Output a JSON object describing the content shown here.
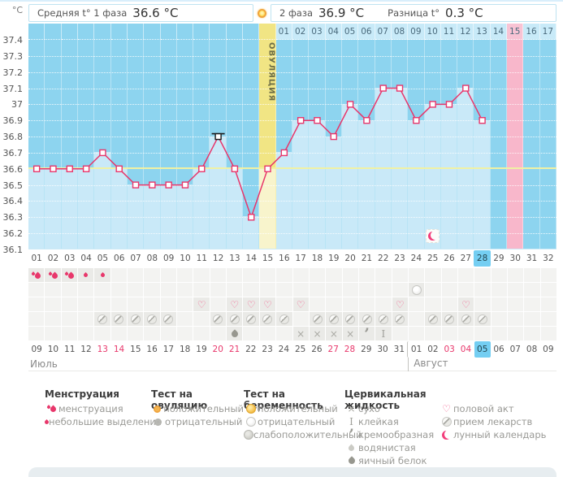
{
  "header": {
    "unit_label": "°C",
    "phase1_label": "Средняя t° 1 фаза",
    "phase1_value": "36.6 °C",
    "phase2_label": "2 фаза",
    "phase2_value": "36.9 °C",
    "diff_label": "Разница t°",
    "diff_value": "0.3 °C",
    "ovulation_label": "ОВУЛЯЦИЯ"
  },
  "chart_data": {
    "type": "line",
    "ylabel": "°C",
    "ylim": [
      36.1,
      37.4
    ],
    "ytick_labels": [
      "37.4",
      "37.3",
      "37.2",
      "37.1",
      "37",
      "36.9",
      "36.8",
      "36.7",
      "36.6",
      "36.5",
      "36.4",
      "36.3",
      "36.2",
      "36.1"
    ],
    "grid": true,
    "cycle_day_labels": [
      "01",
      "02",
      "03",
      "04",
      "05",
      "06",
      "07",
      "08",
      "09",
      "10",
      "11",
      "12",
      "13",
      "14",
      "15",
      "16",
      "17",
      "18",
      "19",
      "20",
      "21",
      "22",
      "23",
      "24",
      "25",
      "26",
      "27",
      "28",
      "29",
      "30",
      "31",
      "32"
    ],
    "temperatures_c": [
      36.6,
      36.6,
      36.6,
      36.6,
      36.7,
      36.6,
      36.5,
      36.5,
      36.5,
      36.5,
      36.6,
      36.8,
      36.6,
      36.3,
      36.6,
      36.7,
      36.9,
      36.9,
      36.8,
      37.0,
      36.9,
      37.1,
      37.1,
      36.9,
      37.0,
      37.0,
      37.1,
      36.9,
      null,
      null,
      null,
      null
    ],
    "coverline_c": 36.6,
    "ovulation_day": 15,
    "excluded_point_day": 12,
    "pink_band_day": 30,
    "selected_day": "28",
    "lunar_marker_day": 25,
    "dpo_labels": [
      "01",
      "02",
      "03",
      "04",
      "05",
      "06",
      "07",
      "08",
      "09",
      "10",
      "11",
      "12",
      "13",
      "14",
      "15",
      "16",
      "17"
    ],
    "dpo_highlighted": "15",
    "line_color": "#e8366b",
    "area_color": "#c9e9f8",
    "bg_color": "#8dd4ef",
    "ovulation_band_color": "#f1e584",
    "pink_band_color": "#f8b7cb"
  },
  "symptom_rows": [
    {
      "name": "menstruation",
      "cells": {
        "1": "menses",
        "2": "menses",
        "3": "menses",
        "4": "spotting",
        "5": "spotting"
      }
    },
    {
      "name": "pregnancy-test",
      "cells": {
        "24": "preg-negative"
      }
    },
    {
      "name": "intercourse",
      "cells": {
        "11": "heart",
        "13": "heart",
        "14": "heart",
        "15": "heart",
        "17": "heart",
        "23": "heart",
        "27": "heart"
      }
    },
    {
      "name": "medication",
      "cells": {
        "5": "pill",
        "6": "pill",
        "7": "pill",
        "8": "pill",
        "9": "pill",
        "12": "pill",
        "13": "pill",
        "14": "pill",
        "15": "pill",
        "16": "pill",
        "18": "pill",
        "19": "pill",
        "20": "pill",
        "21": "pill",
        "22": "pill",
        "23": "pill",
        "25": "pill",
        "26": "pill",
        "27": "pill",
        "28": "pill"
      }
    },
    {
      "name": "cervical-fluid",
      "cells": {
        "13": "eggwhite",
        "17": "dry",
        "18": "dry",
        "19": "dry",
        "20": "dry",
        "21": "creamy",
        "22": "sticky"
      }
    }
  ],
  "calendar": {
    "july_label": "Июль",
    "august_label": "Август",
    "dates": [
      {
        "label": "09"
      },
      {
        "label": "10"
      },
      {
        "label": "11"
      },
      {
        "label": "12"
      },
      {
        "label": "13",
        "red": true
      },
      {
        "label": "14",
        "red": true
      },
      {
        "label": "15"
      },
      {
        "label": "16"
      },
      {
        "label": "17"
      },
      {
        "label": "18"
      },
      {
        "label": "19"
      },
      {
        "label": "20",
        "red": true
      },
      {
        "label": "21",
        "red": true
      },
      {
        "label": "22"
      },
      {
        "label": "23"
      },
      {
        "label": "24"
      },
      {
        "label": "25"
      },
      {
        "label": "26"
      },
      {
        "label": "27",
        "red": true
      },
      {
        "label": "28",
        "red": true
      },
      {
        "label": "29"
      },
      {
        "label": "30"
      },
      {
        "label": "31"
      },
      {
        "label": "01",
        "month_start": true
      },
      {
        "label": "02"
      },
      {
        "label": "03",
        "red": true
      },
      {
        "label": "04",
        "red": true
      },
      {
        "label": "05",
        "selected": true
      },
      {
        "label": "06"
      },
      {
        "label": "07"
      },
      {
        "label": "08"
      },
      {
        "label": "09"
      }
    ]
  },
  "legend": {
    "columns": [
      {
        "title": "Менструация",
        "items": [
          {
            "icon": "menses",
            "label": "менструация"
          },
          {
            "icon": "spotting",
            "label": "небольшие выделения"
          }
        ]
      },
      {
        "title": "Тест на овуляцию",
        "items": [
          {
            "icon": "ovu-positive",
            "label": "положительный"
          },
          {
            "icon": "ovu-negative",
            "label": "отрицательный"
          }
        ]
      },
      {
        "title": "Тест на беременность",
        "items": [
          {
            "icon": "preg-positive",
            "label": "положительный"
          },
          {
            "icon": "preg-negative",
            "label": "отрицательный"
          },
          {
            "icon": "preg-weak",
            "label": "слабоположительный"
          }
        ]
      },
      {
        "title": "Цервикальная жидкость",
        "items": [
          {
            "icon": "dry",
            "label": "сухо"
          },
          {
            "icon": "sticky",
            "label": "клейкая"
          },
          {
            "icon": "creamy",
            "label": "кремообразная"
          },
          {
            "icon": "watery",
            "label": "водянистая"
          },
          {
            "icon": "eggwhite",
            "label": "яичный белок"
          }
        ]
      },
      {
        "title": "",
        "items": [
          {
            "icon": "heart",
            "label": "половой акт"
          },
          {
            "icon": "pill",
            "label": "прием лекарств"
          },
          {
            "icon": "moon",
            "label": "лунный календарь"
          }
        ]
      }
    ]
  }
}
